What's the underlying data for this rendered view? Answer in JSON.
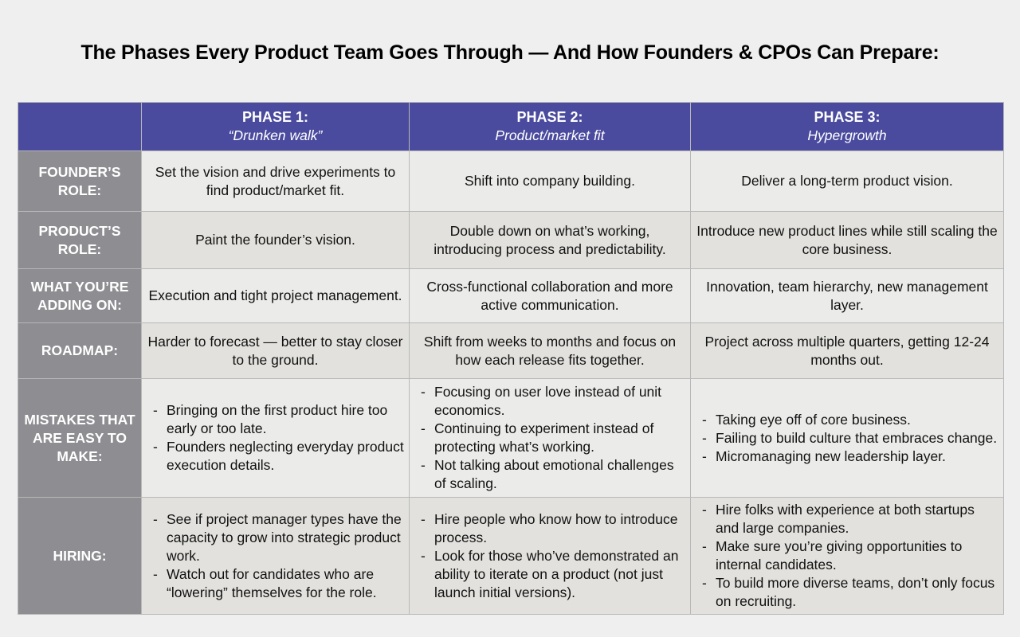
{
  "title": "The Phases Every Product Team Goes Through — And How Founders & CPOs Can Prepare:",
  "phases": [
    {
      "name": "PHASE 1:",
      "subtitle": "“Drunken walk”"
    },
    {
      "name": "PHASE 2:",
      "subtitle": "Product/market fit"
    },
    {
      "name": "PHASE 3:",
      "subtitle": "Hypergrowth"
    }
  ],
  "rows": [
    {
      "label_line1": "FOUNDER’S",
      "label_line2": "ROLE:",
      "cells": [
        "Set the vision and drive experiments to find product/market fit.",
        "Shift into company building.",
        "Deliver a long-term product vision."
      ]
    },
    {
      "label_line1": "PRODUCT’S",
      "label_line2": "ROLE:",
      "cells": [
        "Paint the founder’s vision.",
        "Double down on what’s working, introducing process and predictability.",
        "Introduce new product lines while still scaling the core business."
      ]
    },
    {
      "label_line1": "WHAT YOU’RE",
      "label_line2": "ADDING ON:",
      "cells": [
        "Execution and tight project management.",
        "Cross-functional collaboration and more active communication.",
        "Innovation, team hierarchy, new management layer."
      ]
    },
    {
      "label_line1": "ROADMAP:",
      "label_line2": "",
      "cells": [
        "Harder to forecast — better to stay closer to the ground.",
        "Shift from weeks to months and focus on how each release fits together.",
        "Project across multiple quarters, getting 12-24 months out."
      ]
    }
  ],
  "mistakes": {
    "label_line1": "MISTAKES THAT",
    "label_line2": "ARE EASY TO",
    "label_line3": "MAKE:",
    "phase1": [
      "Bringing on the first product hire too early or too late.",
      "Founders neglecting everyday product execution details."
    ],
    "phase2": [
      "Focusing on user love instead of unit economics.",
      "Continuing to experiment instead of protecting what’s working.",
      "Not talking about emotional challenges of scaling."
    ],
    "phase3": [
      "Taking eye off of core business.",
      "Failing to build culture that embraces change.",
      "Micromanaging new leadership layer."
    ]
  },
  "hiring": {
    "label": "HIRING:",
    "phase1": [
      "See if project manager types have the capacity to grow into strategic product work.",
      "Watch out for candidates who are “lowering” themselves for the role."
    ],
    "phase2": [
      "Hire people who know how to introduce process.",
      "Look for those who’ve demonstrated an ability to iterate on a product (not just launch initial versions)."
    ],
    "phase3": [
      "Hire folks with experience at both startups and large companies.",
      "Make sure you’re giving opportunities to internal candidates.",
      "To build more diverse teams, don’t only focus on recruiting."
    ]
  }
}
